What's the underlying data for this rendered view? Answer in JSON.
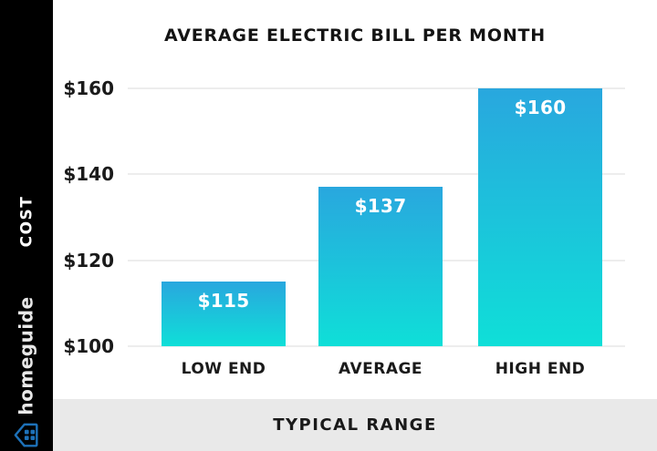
{
  "sidebar": {
    "cost_label": "COST",
    "brand_name": "homeguide"
  },
  "header": {
    "title": "AVERAGE ELECTRIC BILL PER MONTH"
  },
  "footer": {
    "label": "TYPICAL RANGE"
  },
  "colors": {
    "sidebar_bg": "#000000",
    "footer_bg": "#e9e9e9",
    "bar_gradient_top": "#29a7de",
    "bar_gradient_bottom": "#0fdfd8",
    "brand_icon": "#1d71b8"
  },
  "chart_data": {
    "type": "bar",
    "title": "AVERAGE ELECTRIC BILL PER MONTH",
    "categories": [
      "LOW END",
      "AVERAGE",
      "HIGH END"
    ],
    "values": [
      115,
      137,
      160
    ],
    "value_labels": [
      "$115",
      "$137",
      "$160"
    ],
    "yticks": [
      160,
      140,
      120,
      100
    ],
    "ytick_labels": [
      "$160",
      "$140",
      "$120",
      "$100"
    ],
    "ylim": [
      100,
      160
    ],
    "xlabel": "TYPICAL RANGE",
    "ylabel": "COST",
    "grid": true,
    "legend": false
  }
}
